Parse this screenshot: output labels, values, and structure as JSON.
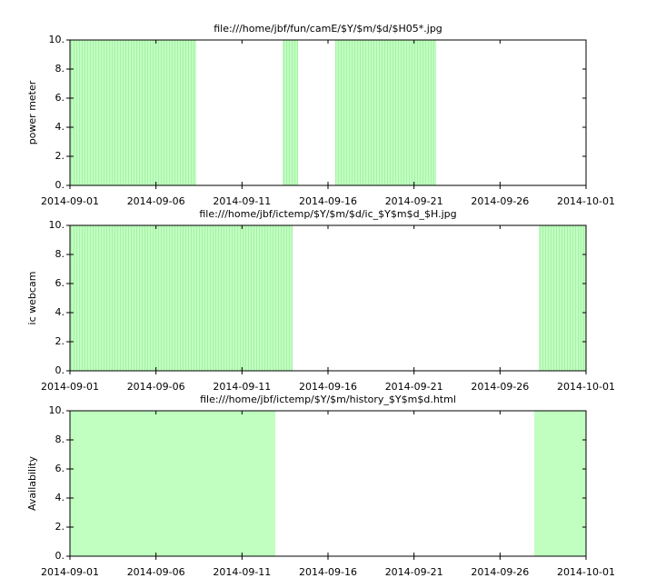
{
  "chart_data": [
    {
      "type": "bar",
      "title": "file:///home/jbf/fun/camE/$Y/$m/$d/$H05*.jpg",
      "y_label": "power meter",
      "color": "#c0ffc0",
      "striped": true,
      "x_start": [
        0,
        12.36,
        15.42
      ],
      "x_end": [
        7.34,
        13.26,
        21.29
      ],
      "values": [
        10,
        10,
        10
      ],
      "xlim": [
        0,
        30
      ],
      "xticks": [
        {
          "value": 0,
          "label": "2014-09-01"
        },
        {
          "value": 5,
          "label": "2014-09-06"
        },
        {
          "value": 10,
          "label": "2014-09-11"
        },
        {
          "value": 15,
          "label": "2014-09-16"
        },
        {
          "value": 20,
          "label": "2014-09-21"
        },
        {
          "value": 25,
          "label": "2014-09-26"
        },
        {
          "value": 30,
          "label": "2014-10-01"
        }
      ],
      "ylim": [
        0,
        10
      ],
      "yticks": [
        {
          "value": 0,
          "label": "0."
        },
        {
          "value": 2,
          "label": "2."
        },
        {
          "value": 4,
          "label": "4."
        },
        {
          "value": 6,
          "label": "6."
        },
        {
          "value": 8,
          "label": "8."
        },
        {
          "value": 10,
          "label": "10."
        }
      ]
    },
    {
      "type": "bar",
      "title": "file:///home/jbf/ictemp/$Y/$m/$d/ic_$Y$m$d_$H.jpg",
      "y_label": "ic webcam",
      "color": "#c0ffc0",
      "striped": true,
      "x_start": [
        0,
        27.26
      ],
      "x_end": [
        12.94,
        30
      ],
      "values": [
        10,
        10
      ],
      "xlim": [
        0,
        30
      ],
      "xticks": [
        {
          "value": 0,
          "label": "2014-09-01"
        },
        {
          "value": 5,
          "label": "2014-09-06"
        },
        {
          "value": 10,
          "label": "2014-09-11"
        },
        {
          "value": 15,
          "label": "2014-09-16"
        },
        {
          "value": 20,
          "label": "2014-09-21"
        },
        {
          "value": 25,
          "label": "2014-09-26"
        },
        {
          "value": 30,
          "label": "2014-10-01"
        }
      ],
      "ylim": [
        0,
        10
      ],
      "yticks": [
        {
          "value": 0,
          "label": "0."
        },
        {
          "value": 2,
          "label": "2."
        },
        {
          "value": 4,
          "label": "4."
        },
        {
          "value": 6,
          "label": "6."
        },
        {
          "value": 8,
          "label": "8."
        },
        {
          "value": 10,
          "label": "10."
        }
      ]
    },
    {
      "type": "bar",
      "title": "file:///home/jbf/ictemp/$Y/$m/history_$Y$m$d.html",
      "y_label": "Availability",
      "color": "#c0ffc0",
      "striped": false,
      "x_start": [
        0,
        26.99
      ],
      "x_end": [
        11.94,
        30
      ],
      "values": [
        10,
        10
      ],
      "xlim": [
        0,
        30
      ],
      "xticks": [
        {
          "value": 0,
          "label": "2014-09-01"
        },
        {
          "value": 5,
          "label": "2014-09-06"
        },
        {
          "value": 10,
          "label": "2014-09-11"
        },
        {
          "value": 15,
          "label": "2014-09-16"
        },
        {
          "value": 20,
          "label": "2014-09-21"
        },
        {
          "value": 25,
          "label": "2014-09-26"
        },
        {
          "value": 30,
          "label": "2014-10-01"
        }
      ],
      "ylim": [
        0,
        10
      ],
      "yticks": [
        {
          "value": 0,
          "label": "0."
        },
        {
          "value": 2,
          "label": "2."
        },
        {
          "value": 4,
          "label": "4."
        },
        {
          "value": 6,
          "label": "6."
        },
        {
          "value": 8,
          "label": "8."
        },
        {
          "value": 10,
          "label": "10."
        }
      ]
    }
  ]
}
